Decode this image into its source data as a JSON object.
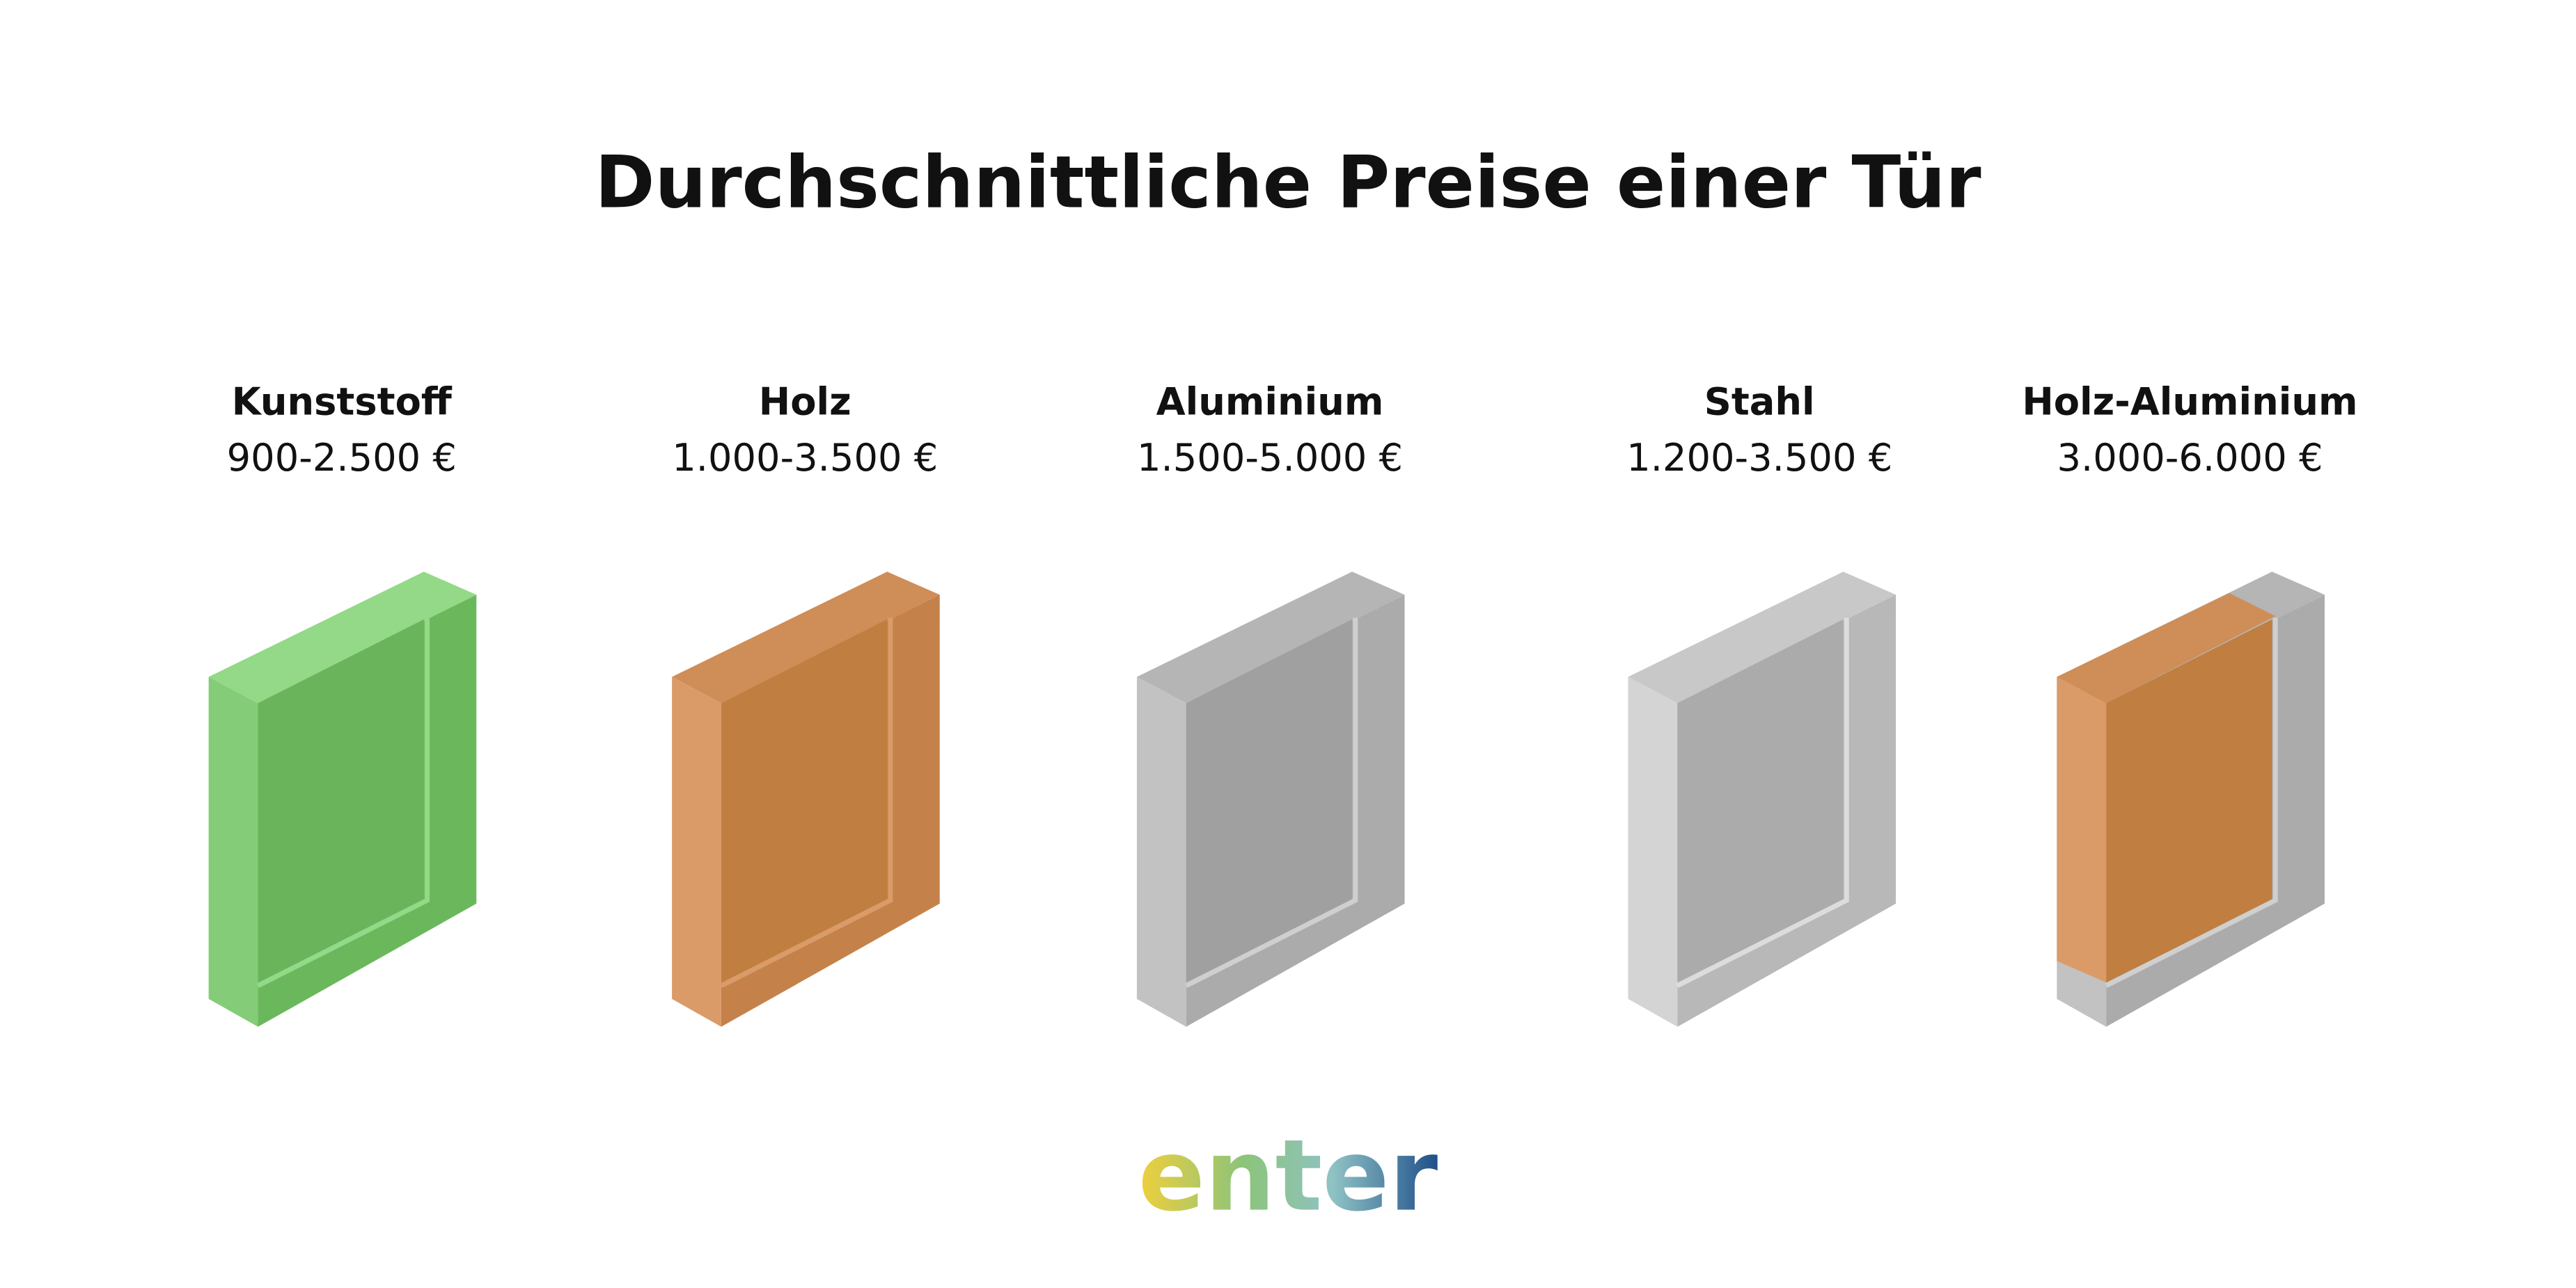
{
  "title": "Durchschnittliche Preise einer Tür",
  "items": [
    {
      "name": "Kunststoff",
      "price": "900-2.500 €"
    },
    {
      "name": "Holz",
      "price": "1.000-3.500 €"
    },
    {
      "name": "Aluminium",
      "price": "1.500-5.000 €"
    },
    {
      "name": "Stahl",
      "price": "1.200-3.500 €"
    },
    {
      "name": "Holz-Aluminium",
      "price": "3.000-6.000 €"
    }
  ],
  "logo": "enter"
}
